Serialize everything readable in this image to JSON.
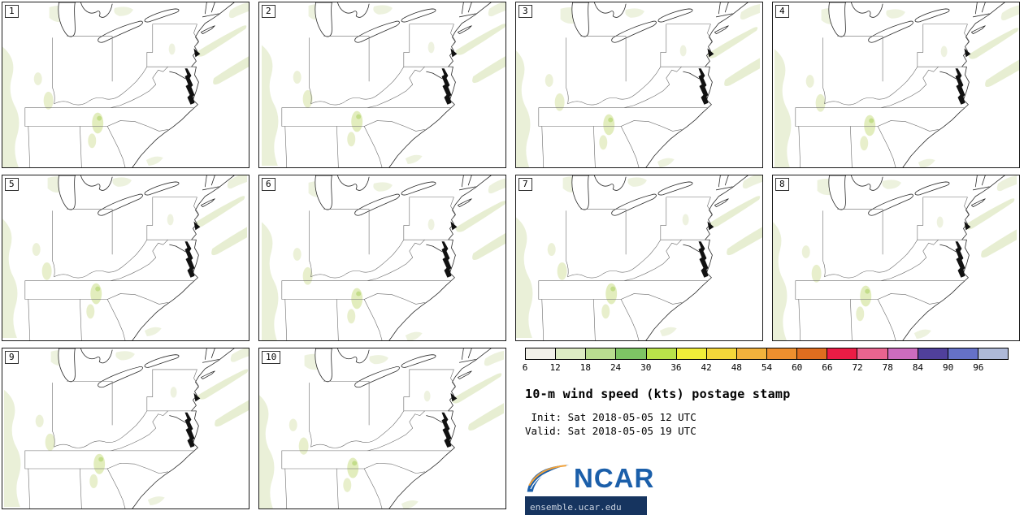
{
  "panels": [
    {
      "number": "1"
    },
    {
      "number": "2"
    },
    {
      "number": "3"
    },
    {
      "number": "4"
    },
    {
      "number": "5"
    },
    {
      "number": "6"
    },
    {
      "number": "7"
    },
    {
      "number": "8"
    },
    {
      "number": "9"
    },
    {
      "number": "10"
    }
  ],
  "colorbar": {
    "ticks": [
      "6",
      "12",
      "18",
      "24",
      "30",
      "36",
      "42",
      "48",
      "54",
      "60",
      "66",
      "72",
      "78",
      "84",
      "90",
      "96"
    ],
    "colors": [
      "#f2f1e9",
      "#ddecc3",
      "#b9dd90",
      "#7ec564",
      "#b9e24a",
      "#f1ee39",
      "#f4d73a",
      "#f2b23c",
      "#ee8f2e",
      "#df6d1f",
      "#ea1c45",
      "#e8648f",
      "#cc6cbe",
      "#50409b",
      "#6571c7",
      "#aeb9d8"
    ]
  },
  "info": {
    "title": "10-m wind speed (kts) postage stamp",
    "init_line": " Init: Sat 2018-05-05 12 UTC",
    "valid_line": "Valid: Sat 2018-05-05 19 UTC",
    "logo_text": "NCAR",
    "logo_url": "ensemble.ucar.edu"
  },
  "chart_data": {
    "type": "heatmap",
    "title": "10-m wind speed (kts) postage stamp",
    "subtitle_lines": [
      "Init: Sat 2018-05-05 12 UTC",
      "Valid: Sat 2018-05-05 19 UTC"
    ],
    "ensemble_members": [
      1,
      2,
      3,
      4,
      5,
      6,
      7,
      8,
      9,
      10
    ],
    "colorbar_levels_kts": [
      6,
      12,
      18,
      24,
      30,
      36,
      42,
      48,
      54,
      60,
      66,
      72,
      78,
      84,
      90,
      96
    ],
    "colorbar_colors": [
      "#f2f1e9",
      "#ddecc3",
      "#b9dd90",
      "#7ec564",
      "#b9e24a",
      "#f1ee39",
      "#f4d73a",
      "#f2b23c",
      "#ee8f2e",
      "#df6d1f",
      "#ea1c45",
      "#e8648f",
      "#cc6cbe",
      "#50409b",
      "#6571c7",
      "#aeb9d8"
    ],
    "region": "Eastern United States: Great Lakes to Southeast Atlantic coast, state boundaries drawn",
    "legend_position": "bottom-right",
    "source_label": "ensemble.ucar.edu",
    "notes": "All 10 members show mostly calm winds; sparse pale green shading in the 6-18 kt range along the Appalachians, upper-right diagonal bands, and small patches in the central/southern interior"
  }
}
